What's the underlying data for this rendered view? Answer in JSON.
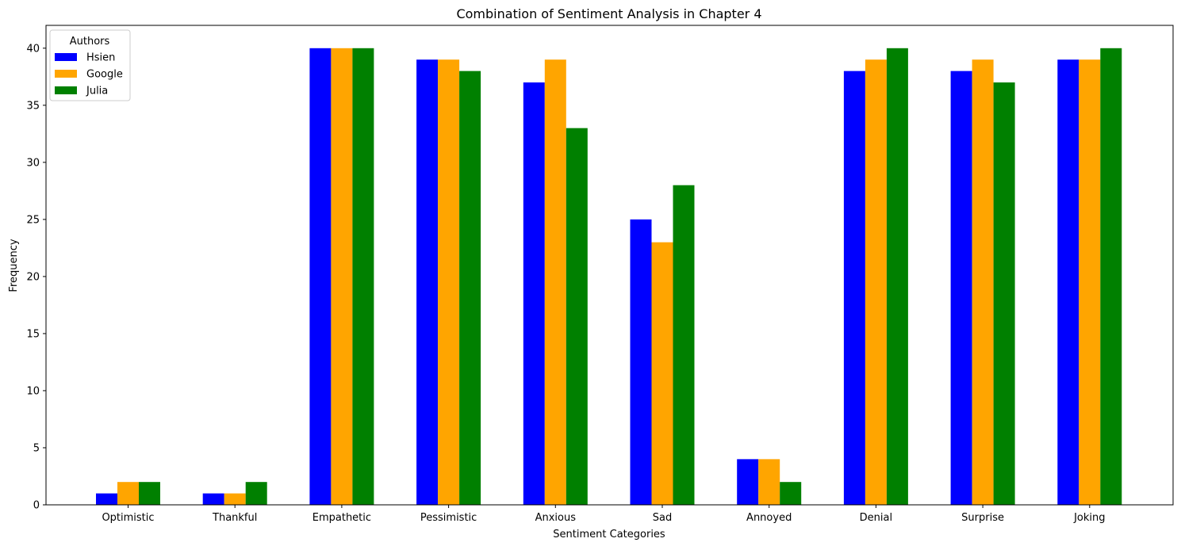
{
  "chart_data": {
    "type": "bar",
    "title": "Combination of Sentiment Analysis in Chapter 4",
    "xlabel": "Sentiment Categories",
    "ylabel": "Frequency",
    "categories": [
      "Optimistic",
      "Thankful",
      "Empathetic",
      "Pessimistic",
      "Anxious",
      "Sad",
      "Annoyed",
      "Denial",
      "Surprise",
      "Joking"
    ],
    "series": [
      {
        "name": "Hsien",
        "color": "#0000ff",
        "values": [
          1,
          1,
          40,
          39,
          37,
          25,
          4,
          38,
          38,
          39
        ]
      },
      {
        "name": "Google",
        "color": "#ffa500",
        "values": [
          2,
          1,
          40,
          39,
          39,
          23,
          4,
          39,
          39,
          39
        ]
      },
      {
        "name": "Julia",
        "color": "#008000",
        "values": [
          2,
          2,
          40,
          38,
          33,
          28,
          2,
          40,
          37,
          40
        ]
      }
    ],
    "ylim": [
      0,
      42
    ],
    "yticks": [
      0,
      5,
      10,
      15,
      20,
      25,
      30,
      35,
      40
    ],
    "legend": {
      "title": "Authors",
      "placement": "top-left"
    },
    "grid": false
  }
}
